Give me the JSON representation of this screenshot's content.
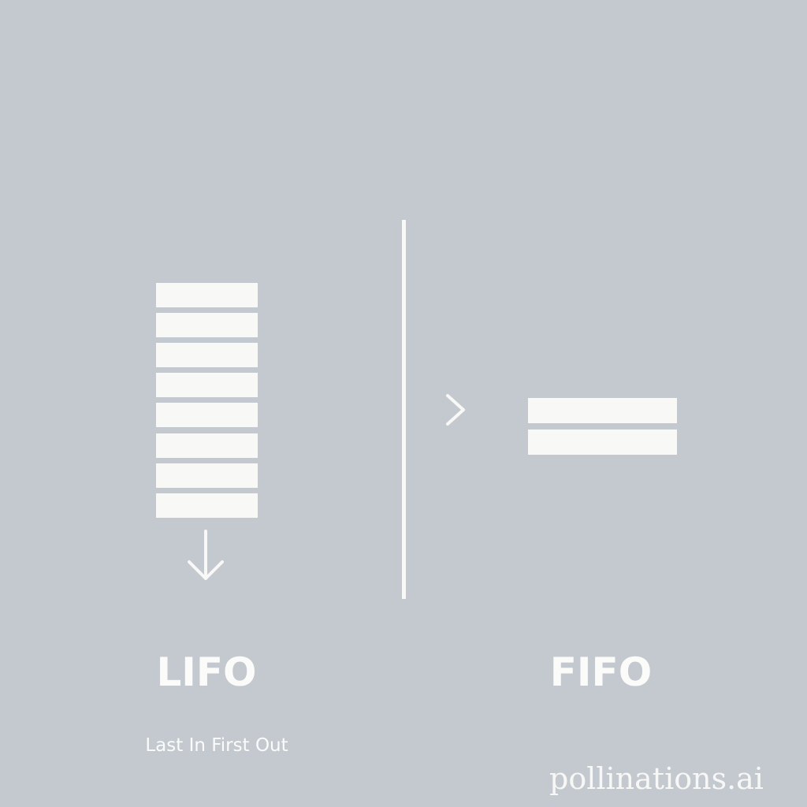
{
  "colors": {
    "background": "#c4c9d0",
    "foreground": "#f8f8f6"
  },
  "lifo": {
    "title": "LIFO",
    "subtitle": "Last In First Out",
    "block_count": 8,
    "arrow_icon": "arrow-down-icon"
  },
  "fifo": {
    "title": "FIFO",
    "block_count": 2,
    "arrow_icon": "chevron-right-icon"
  },
  "watermark": "pollinations.ai"
}
